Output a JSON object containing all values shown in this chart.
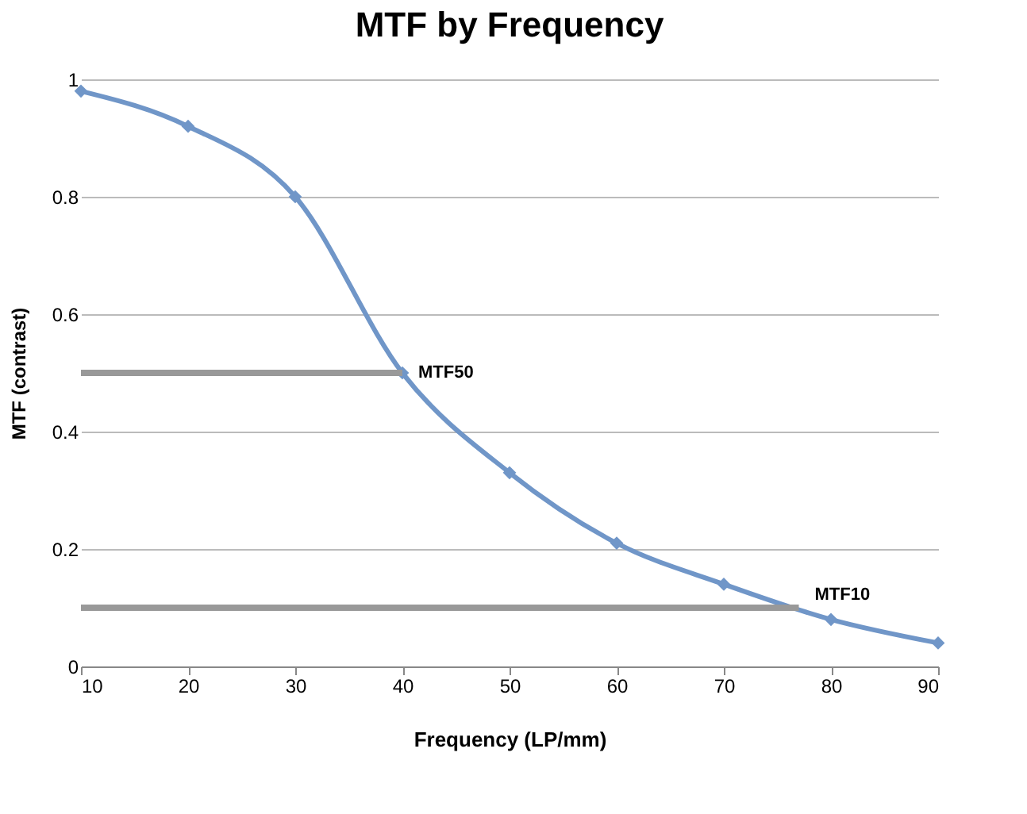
{
  "chart_data": {
    "type": "line",
    "title": "MTF by Frequency",
    "xlabel": "Frequency (LP/mm)",
    "ylabel": "MTF (contrast)",
    "x": [
      10,
      20,
      30,
      40,
      50,
      60,
      70,
      80,
      90
    ],
    "series": [
      {
        "color": "#7096c8",
        "values": [
          0.98,
          0.92,
          0.8,
          0.5,
          0.33,
          0.21,
          0.14,
          0.08,
          0.04
        ],
        "marker": "diamond"
      },
      {
        "color": "#999999",
        "x": [
          10,
          40
        ],
        "values": [
          0.5,
          0.5
        ],
        "marker": "none"
      },
      {
        "color": "#999999",
        "x": [
          10,
          77
        ],
        "values": [
          0.1,
          0.1
        ],
        "marker": "none"
      }
    ],
    "annotations": [
      {
        "text": "MTF50",
        "x": 40,
        "y": 0.5
      },
      {
        "text": "MTF10",
        "x": 77,
        "y": 0.1
      }
    ],
    "xlim": [
      10,
      90
    ],
    "xticks": [
      10,
      20,
      30,
      40,
      50,
      60,
      70,
      80,
      90
    ],
    "ylim": [
      0,
      1
    ],
    "yticks": [
      0,
      0.2,
      0.4,
      0.6,
      0.8,
      1
    ],
    "grid": "y",
    "line_style": "solid"
  }
}
